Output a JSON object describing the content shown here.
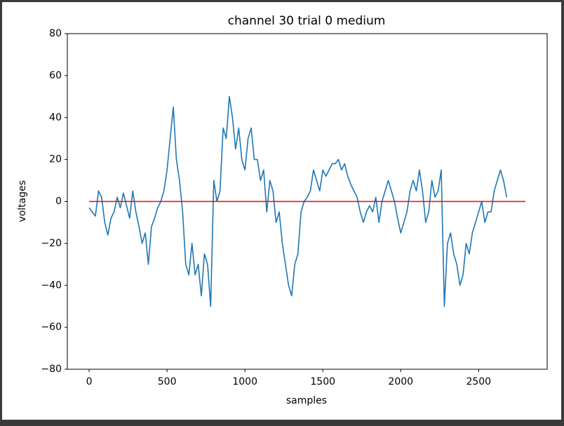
{
  "chart_data": {
    "type": "line",
    "title": "channel 30 trial 0 medium",
    "x_label": "samples",
    "y_label": "voltages",
    "xlim": [
      -140,
      2940
    ],
    "ylim": [
      -80,
      80
    ],
    "xticks": [
      0,
      500,
      1000,
      1500,
      2000,
      2500
    ],
    "yticks": [
      {
        "value": -80,
        "label": "−80"
      },
      {
        "value": -60,
        "label": "−60"
      },
      {
        "value": -40,
        "label": "−40"
      },
      {
        "value": -20,
        "label": "−20"
      },
      0,
      20,
      40,
      60,
      80
    ],
    "series": [
      {
        "color": "#1f77b4",
        "x": [
          0,
          20,
          40,
          60,
          80,
          100,
          120,
          140,
          160,
          180,
          200,
          220,
          240,
          260,
          280,
          300,
          320,
          340,
          360,
          380,
          400,
          420,
          440,
          460,
          480,
          500,
          520,
          540,
          560,
          580,
          600,
          620,
          640,
          660,
          680,
          700,
          720,
          740,
          760,
          780,
          800,
          820,
          840,
          860,
          880,
          900,
          920,
          940,
          960,
          980,
          1000,
          1020,
          1040,
          1060,
          1080,
          1100,
          1120,
          1140,
          1160,
          1180,
          1200,
          1220,
          1240,
          1260,
          1280,
          1300,
          1320,
          1340,
          1360,
          1380,
          1400,
          1420,
          1440,
          1460,
          1480,
          1500,
          1520,
          1540,
          1560,
          1580,
          1600,
          1620,
          1640,
          1660,
          1680,
          1700,
          1720,
          1740,
          1760,
          1780,
          1800,
          1820,
          1840,
          1860,
          1880,
          1900,
          1920,
          1940,
          1960,
          1980,
          2000,
          2020,
          2040,
          2060,
          2080,
          2100,
          2120,
          2140,
          2160,
          2180,
          2200,
          2220,
          2240,
          2260,
          2280,
          2300,
          2320,
          2340,
          2360,
          2380,
          2400,
          2420,
          2440,
          2460,
          2480,
          2500,
          2520,
          2540,
          2560,
          2580,
          2600,
          2620,
          2640,
          2660,
          2680
        ],
        "values": [
          -3,
          -5,
          -7,
          5,
          2,
          -10,
          -16,
          -8,
          -5,
          2,
          -3,
          4,
          -2,
          -8,
          5,
          -5,
          -12,
          -20,
          -15,
          -30,
          -12,
          -8,
          -3,
          0,
          5,
          15,
          30,
          45,
          20,
          10,
          -5,
          -30,
          -35,
          -20,
          -35,
          -30,
          -45,
          -25,
          -30,
          -50,
          10,
          0,
          5,
          35,
          30,
          50,
          40,
          25,
          35,
          20,
          15,
          30,
          35,
          20,
          20,
          10,
          15,
          -5,
          10,
          5,
          -10,
          -5,
          -20,
          -30,
          -40,
          -45,
          -30,
          -25,
          -5,
          0,
          2,
          5,
          15,
          10,
          5,
          15,
          12,
          15,
          18,
          18,
          20,
          15,
          18,
          12,
          8,
          5,
          2,
          -5,
          -10,
          -5,
          -2,
          -5,
          2,
          -10,
          0,
          5,
          10,
          5,
          0,
          -8,
          -15,
          -10,
          -5,
          5,
          10,
          5,
          15,
          5,
          -10,
          -5,
          10,
          2,
          5,
          15,
          -50,
          -20,
          -15,
          -25,
          -30,
          -40,
          -35,
          -20,
          -25,
          -15,
          -10,
          -5,
          0,
          -10,
          -5,
          -5,
          5,
          10,
          15,
          10,
          2
        ]
      },
      {
        "color": "#ff0000",
        "x": [
          0,
          2800
        ],
        "values": [
          0,
          0
        ]
      }
    ]
  }
}
